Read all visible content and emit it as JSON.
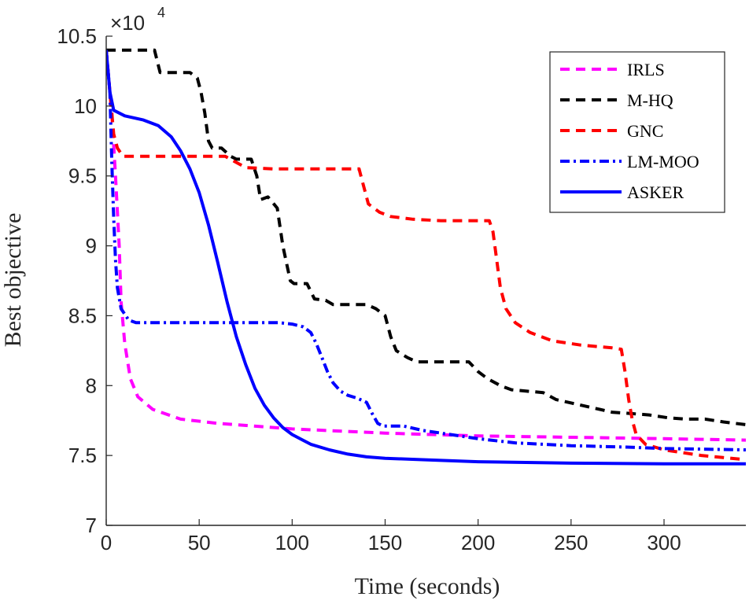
{
  "chart_data": {
    "type": "line",
    "title": "",
    "xlabel": "Time (seconds)",
    "ylabel": "Best objective",
    "xlim": [
      0,
      344
    ],
    "ylim": [
      7.0,
      10.5
    ],
    "y_scale_label": "×10",
    "y_scale_exponent": "4",
    "x_ticks": [
      0,
      50,
      100,
      150,
      200,
      250,
      300
    ],
    "y_ticks": [
      7,
      7.5,
      8,
      8.5,
      9,
      9.5,
      10,
      10.5
    ],
    "x_tick_labels": [
      "0",
      "50",
      "100",
      "150",
      "200",
      "250",
      "300"
    ],
    "y_tick_labels": [
      "7",
      "7.5",
      "8",
      "8.5",
      "9",
      "9.5",
      "10",
      "10.5"
    ],
    "grid": false,
    "legend_position": "top-right",
    "series": [
      {
        "name": "IRLS",
        "color": "#ff00ff",
        "dash": "dashed",
        "points": [
          [
            0,
            10.4
          ],
          [
            3,
            9.95
          ],
          [
            5,
            9.5
          ],
          [
            7,
            9.0
          ],
          [
            8,
            8.6
          ],
          [
            10,
            8.3
          ],
          [
            13,
            8.05
          ],
          [
            17,
            7.92
          ],
          [
            25,
            7.83
          ],
          [
            40,
            7.76
          ],
          [
            60,
            7.73
          ],
          [
            100,
            7.69
          ],
          [
            150,
            7.66
          ],
          [
            200,
            7.64
          ],
          [
            250,
            7.63
          ],
          [
            300,
            7.62
          ],
          [
            344,
            7.61
          ]
        ]
      },
      {
        "name": "M-HQ",
        "color": "#000000",
        "dash": "dashed",
        "points": [
          [
            0,
            10.4
          ],
          [
            26,
            10.4
          ],
          [
            29,
            10.24
          ],
          [
            45,
            10.24
          ],
          [
            49,
            10.2
          ],
          [
            51,
            10.1
          ],
          [
            53,
            9.95
          ],
          [
            55,
            9.75
          ],
          [
            57,
            9.7
          ],
          [
            62,
            9.7
          ],
          [
            67,
            9.64
          ],
          [
            70,
            9.62
          ],
          [
            78,
            9.62
          ],
          [
            81,
            9.5
          ],
          [
            83,
            9.33
          ],
          [
            87,
            9.35
          ],
          [
            92,
            9.27
          ],
          [
            95,
            9.0
          ],
          [
            99,
            8.75
          ],
          [
            101,
            8.73
          ],
          [
            108,
            8.73
          ],
          [
            112,
            8.62
          ],
          [
            118,
            8.61
          ],
          [
            122,
            8.58
          ],
          [
            140,
            8.58
          ],
          [
            145,
            8.55
          ],
          [
            150,
            8.5
          ],
          [
            153,
            8.35
          ],
          [
            156,
            8.25
          ],
          [
            162,
            8.2
          ],
          [
            167,
            8.17
          ],
          [
            172,
            8.17
          ],
          [
            195,
            8.17
          ],
          [
            200,
            8.1
          ],
          [
            205,
            8.05
          ],
          [
            212,
            8.0
          ],
          [
            218,
            7.97
          ],
          [
            235,
            7.95
          ],
          [
            242,
            7.9
          ],
          [
            252,
            7.87
          ],
          [
            262,
            7.84
          ],
          [
            272,
            7.81
          ],
          [
            282,
            7.8
          ],
          [
            292,
            7.79
          ],
          [
            302,
            7.77
          ],
          [
            312,
            7.76
          ],
          [
            322,
            7.76
          ],
          [
            332,
            7.74
          ],
          [
            344,
            7.72
          ]
        ]
      },
      {
        "name": "GNC",
        "color": "#ff0000",
        "dash": "dashed",
        "points": [
          [
            0,
            10.4
          ],
          [
            2,
            10.1
          ],
          [
            4,
            9.8
          ],
          [
            6,
            9.7
          ],
          [
            9,
            9.64
          ],
          [
            30,
            9.64
          ],
          [
            64,
            9.64
          ],
          [
            75,
            9.56
          ],
          [
            90,
            9.55
          ],
          [
            130,
            9.55
          ],
          [
            136,
            9.55
          ],
          [
            138,
            9.45
          ],
          [
            141,
            9.3
          ],
          [
            147,
            9.24
          ],
          [
            153,
            9.21
          ],
          [
            165,
            9.19
          ],
          [
            180,
            9.18
          ],
          [
            206,
            9.18
          ],
          [
            208,
            9.1
          ],
          [
            210,
            8.9
          ],
          [
            212,
            8.7
          ],
          [
            215,
            8.55
          ],
          [
            220,
            8.45
          ],
          [
            228,
            8.38
          ],
          [
            240,
            8.32
          ],
          [
            255,
            8.29
          ],
          [
            272,
            8.27
          ],
          [
            277,
            8.26
          ],
          [
            279,
            8.1
          ],
          [
            281,
            7.9
          ],
          [
            283,
            7.75
          ],
          [
            285,
            7.65
          ],
          [
            290,
            7.58
          ],
          [
            300,
            7.54
          ],
          [
            320,
            7.5
          ],
          [
            344,
            7.47
          ]
        ]
      },
      {
        "name": "LM-MOO",
        "color": "#0000ff",
        "dash": "dashdot",
        "points": [
          [
            0,
            10.4
          ],
          [
            2,
            10.1
          ],
          [
            3,
            9.6
          ],
          [
            4,
            9.2
          ],
          [
            5,
            8.9
          ],
          [
            6,
            8.7
          ],
          [
            8,
            8.55
          ],
          [
            12,
            8.47
          ],
          [
            16,
            8.45
          ],
          [
            50,
            8.45
          ],
          [
            93,
            8.45
          ],
          [
            100,
            8.44
          ],
          [
            106,
            8.42
          ],
          [
            110,
            8.38
          ],
          [
            113,
            8.3
          ],
          [
            116,
            8.2
          ],
          [
            119,
            8.1
          ],
          [
            122,
            8.02
          ],
          [
            126,
            7.96
          ],
          [
            130,
            7.93
          ],
          [
            135,
            7.91
          ],
          [
            140,
            7.88
          ],
          [
            143,
            7.8
          ],
          [
            146,
            7.73
          ],
          [
            149,
            7.71
          ],
          [
            160,
            7.71
          ],
          [
            170,
            7.68
          ],
          [
            180,
            7.66
          ],
          [
            200,
            7.62
          ],
          [
            220,
            7.59
          ],
          [
            250,
            7.57
          ],
          [
            280,
            7.56
          ],
          [
            300,
            7.55
          ],
          [
            344,
            7.54
          ]
        ]
      },
      {
        "name": "ASKER",
        "color": "#0000ff",
        "dash": "solid",
        "points": [
          [
            0,
            10.4
          ],
          [
            2,
            10.1
          ],
          [
            4,
            9.97
          ],
          [
            10,
            9.93
          ],
          [
            20,
            9.9
          ],
          [
            28,
            9.86
          ],
          [
            35,
            9.78
          ],
          [
            40,
            9.68
          ],
          [
            45,
            9.55
          ],
          [
            50,
            9.38
          ],
          [
            55,
            9.15
          ],
          [
            60,
            8.88
          ],
          [
            65,
            8.6
          ],
          [
            70,
            8.35
          ],
          [
            75,
            8.15
          ],
          [
            80,
            7.98
          ],
          [
            85,
            7.86
          ],
          [
            90,
            7.77
          ],
          [
            95,
            7.7
          ],
          [
            100,
            7.65
          ],
          [
            110,
            7.58
          ],
          [
            120,
            7.54
          ],
          [
            130,
            7.51
          ],
          [
            140,
            7.49
          ],
          [
            150,
            7.48
          ],
          [
            170,
            7.47
          ],
          [
            200,
            7.455
          ],
          [
            250,
            7.445
          ],
          [
            300,
            7.44
          ],
          [
            344,
            7.44
          ]
        ]
      }
    ]
  }
}
